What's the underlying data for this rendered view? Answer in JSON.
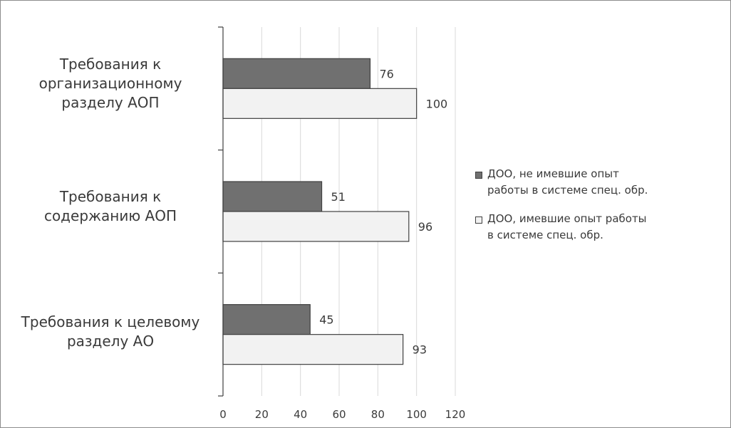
{
  "chart_data": {
    "type": "bar",
    "orientation": "horizontal",
    "categories": [
      "Требования к\nорганизационному\nразделу АОП",
      "Требования к\nсодержанию АОП",
      "Требования к целевому\nразделу АО"
    ],
    "series": [
      {
        "name": "ДОО, не имевшие опыт\nработы в системе спец. обр.",
        "values": [
          76,
          51,
          45
        ],
        "color": "#707070"
      },
      {
        "name": "ДОО, имевшие опыт работы\nв системе спец. обр.",
        "values": [
          100,
          96,
          93
        ],
        "color": "#f2f2f2"
      }
    ],
    "xlim": [
      0,
      120
    ],
    "xticks": [
      "0",
      "20",
      "40",
      "60",
      "80",
      "100",
      "120"
    ],
    "grid": true,
    "legend_position": "right",
    "bar_border_color": "#404040",
    "grid_color": "#d9d9d9",
    "axis_color": "#404040",
    "text_color": "#3a3a3a"
  }
}
